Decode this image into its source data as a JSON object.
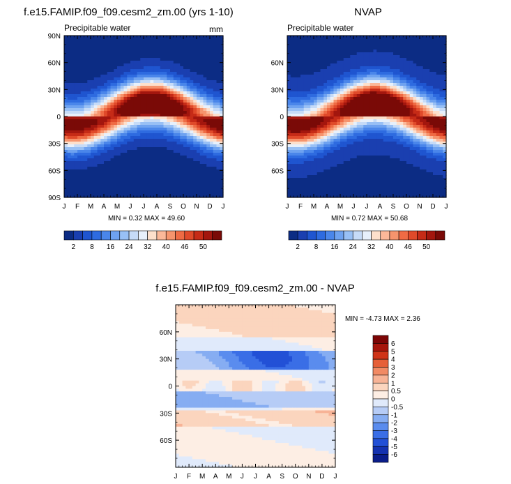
{
  "chart_data": [
    {
      "type": "heatmap",
      "title": "f.e15.FAMIP.f09_f09.cesm2_zm.00 (yrs 1-10)",
      "subtitle": "Precipitable water",
      "units": "mm",
      "x_tick_labels": [
        "J",
        "F",
        "M",
        "A",
        "M",
        "J",
        "J",
        "A",
        "S",
        "O",
        "N",
        "D",
        "J"
      ],
      "y_tick_labels": [
        "90N",
        "60N",
        "30N",
        "0",
        "30S",
        "60S",
        "90S"
      ],
      "stats": "MIN =   0.32 MAX =  49.60",
      "field_min": 0.32,
      "field_max": 49.6,
      "colorbar_labels": [
        "2",
        "8",
        "16",
        "24",
        "32",
        "40",
        "46",
        "50"
      ]
    },
    {
      "type": "heatmap",
      "title": "NVAP",
      "subtitle": "Precipitable water",
      "x_tick_labels": [
        "J",
        "F",
        "M",
        "A",
        "M",
        "J",
        "J",
        "A",
        "S",
        "O",
        "N",
        "D",
        "J"
      ],
      "y_tick_labels": [
        "60N",
        "30N",
        "0",
        "30S",
        "60S"
      ],
      "stats": "MIN =   0.72 MAX =  50.68",
      "field_min": 0.72,
      "field_max": 50.68,
      "colorbar_labels": [
        "2",
        "8",
        "16",
        "24",
        "32",
        "40",
        "46",
        "50"
      ]
    },
    {
      "type": "heatmap",
      "title": "f.e15.FAMIP.f09_f09.cesm2_zm.00 - NVAP",
      "x_tick_labels": [
        "J",
        "F",
        "M",
        "A",
        "M",
        "J",
        "J",
        "A",
        "S",
        "O",
        "N",
        "D",
        "J"
      ],
      "y_tick_labels": [
        "60N",
        "30N",
        "0",
        "30S",
        "60S"
      ],
      "stats": "MIN =  -4.73 MAX =   2.36",
      "field_min": -4.73,
      "field_max": 2.36,
      "colorbar_labels": [
        "6",
        "5",
        "4",
        "3",
        "2",
        "1",
        "0.5",
        "0",
        "-0.5",
        "-1",
        "-2",
        "-3",
        "-4",
        "-5",
        "-6"
      ]
    }
  ],
  "colors": {
    "abs_scale": [
      "#0c2c84",
      "#1a3fb0",
      "#1f55d0",
      "#2e6be0",
      "#4a86ea",
      "#6ea2f0",
      "#98c0f5",
      "#c6dbf7",
      "#e7f0fb",
      "#fde0cc",
      "#fbb899",
      "#f6946d",
      "#ef6b44",
      "#e04a2a",
      "#c62b17",
      "#a3160e",
      "#7a0a07"
    ],
    "diff_scale": [
      "#0a1d8a",
      "#1432b0",
      "#2250d6",
      "#3a6ee6",
      "#5a8cee",
      "#86adf2",
      "#b6ccf6",
      "#e0eafb",
      "#fdeee4",
      "#fbd5be",
      "#f7b396",
      "#f18a64",
      "#e65f38",
      "#cf3418",
      "#a6150b",
      "#7c0505"
    ]
  }
}
